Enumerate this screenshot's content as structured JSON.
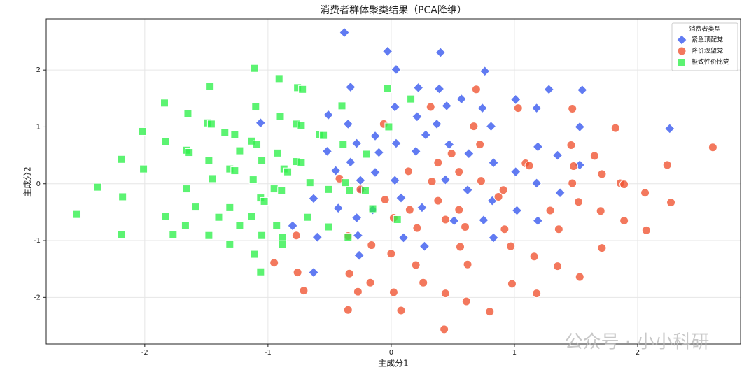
{
  "chart_data": {
    "type": "scatter",
    "title": "消费者群体聚类结果（PCA降维）",
    "xlabel": "主成分1",
    "ylabel": "主成分2",
    "xlim": [
      -2.8,
      2.835
    ],
    "ylim": [
      -2.82,
      2.9
    ],
    "xticks": [
      -2,
      -1,
      0,
      1,
      2
    ],
    "yticks": [
      -2,
      -1,
      0,
      1,
      2
    ],
    "grid": true,
    "legend_title": "消费者类型",
    "legend_position": "upper right",
    "watermark": "公众号 · 小小科研",
    "series": [
      {
        "name": "紧急顶配党",
        "color": "#3556ee",
        "marker": "diamond",
        "x": [
          -0.38,
          -0.03,
          0.4,
          0.04,
          0.76,
          -0.33,
          0.39,
          0.22,
          1.28,
          1.55,
          1.01,
          0.57,
          1.18,
          0.74,
          0.45,
          -0.51,
          -1.06,
          -0.35,
          0.03,
          0.21,
          0.37,
          0.81,
          1.53,
          2.26,
          -0.13,
          0.28,
          0.47,
          -0.28,
          0.04,
          -0.52,
          -0.1,
          0.2,
          0.63,
          0.83,
          1.19,
          1.35,
          1.53,
          1.01,
          -0.45,
          -0.33,
          -0.13,
          0.03,
          1.18,
          0.44,
          0.62,
          -0.25,
          -0.24,
          0.08,
          0.25,
          0.82,
          1.02,
          1.19,
          1.37,
          -0.43,
          -0.28,
          -0.27,
          -0.63,
          -0.8,
          -0.6,
          -0.63,
          -0.26,
          0.1,
          0.27,
          0.51,
          0.75,
          0.83,
          -0.15
        ],
        "values": [
          2.66,
          2.33,
          2.31,
          2.01,
          1.98,
          1.7,
          1.67,
          1.69,
          1.66,
          1.65,
          1.48,
          1.49,
          1.33,
          1.33,
          1.37,
          1.21,
          1.07,
          1.05,
          1.35,
          1.18,
          1.05,
          1.01,
          1.0,
          0.97,
          0.84,
          0.86,
          0.69,
          0.71,
          0.71,
          0.57,
          0.55,
          0.57,
          0.53,
          0.37,
          0.65,
          0.5,
          0.33,
          0.21,
          0.23,
          0.38,
          0.2,
          0.06,
          0.01,
          0.07,
          -0.11,
          0.06,
          -0.11,
          -0.25,
          -0.42,
          -0.3,
          -0.47,
          -0.65,
          -0.16,
          -0.43,
          -0.6,
          -0.91,
          -0.26,
          -0.74,
          -0.94,
          -1.56,
          -1.26,
          -0.95,
          -1.1,
          -0.65,
          -0.64,
          -0.95,
          -0.46
        ]
      },
      {
        "name": "降价观望党",
        "color": "#f0522f",
        "marker": "circle",
        "x": [
          0.69,
          0.32,
          1.03,
          1.47,
          0.67,
          1.82,
          -0.06,
          1.46,
          0.72,
          0.49,
          1.65,
          0.38,
          0.55,
          1.09,
          1.12,
          1.71,
          1.48,
          2.24,
          2.61,
          -0.42,
          0.14,
          0.33,
          0.73,
          0.91,
          1.47,
          1.86,
          1.89,
          2.06,
          -0.25,
          -0.05,
          0.38,
          0.55,
          0.87,
          1.29,
          1.52,
          1.7,
          2.27,
          0.02,
          0.15,
          0.21,
          0.44,
          0.6,
          0.92,
          1.36,
          1.89,
          2.07,
          -0.77,
          -0.35,
          -0.16,
          0.0,
          0.56,
          0.97,
          1.16,
          1.71,
          -0.95,
          -0.76,
          -0.34,
          0.2,
          0.62,
          1.35,
          1.53,
          -0.71,
          -0.27,
          -0.17,
          0.02,
          0.26,
          0.44,
          0.98,
          1.18,
          -0.35,
          0.08,
          0.61,
          0.8,
          0.43
        ],
        "values": [
          1.66,
          1.35,
          1.33,
          1.32,
          1.01,
          0.98,
          1.05,
          0.68,
          0.69,
          0.53,
          0.49,
          0.37,
          0.21,
          0.36,
          0.32,
          0.17,
          0.31,
          0.33,
          0.64,
          0.09,
          0.22,
          0.04,
          0.05,
          -0.11,
          0.01,
          0.01,
          -0.01,
          -0.16,
          -0.1,
          -0.28,
          -0.3,
          -0.46,
          -0.23,
          -0.47,
          -0.32,
          -0.48,
          -0.33,
          -0.6,
          -0.46,
          -0.78,
          -0.63,
          -0.76,
          -0.8,
          -0.8,
          -0.65,
          -0.82,
          -0.91,
          -0.92,
          -1.08,
          -1.23,
          -1.11,
          -1.1,
          -1.28,
          -1.13,
          -1.39,
          -1.56,
          -1.58,
          -1.43,
          -1.42,
          -1.45,
          -1.64,
          -1.88,
          -1.9,
          -1.74,
          -1.91,
          -1.74,
          -1.93,
          -1.76,
          -1.93,
          -2.22,
          -2.23,
          -2.07,
          -2.25,
          -2.56
        ]
      },
      {
        "name": "极致性价比党",
        "color": "#2ef04a",
        "marker": "square",
        "x": [
          -2.55,
          -2.38,
          -2.19,
          -2.18,
          -2.19,
          -2.02,
          -2.01,
          -1.84,
          -1.83,
          -1.83,
          -1.77,
          -1.66,
          -1.65,
          -1.66,
          -1.64,
          -1.67,
          -1.59,
          -1.47,
          -1.49,
          -1.46,
          -1.48,
          -1.48,
          -1.45,
          -1.4,
          -1.35,
          -1.27,
          -1.31,
          -1.27,
          -1.31,
          -1.31,
          -1.23,
          -1.23,
          -1.11,
          -1.13,
          -1.09,
          -1.12,
          -1.05,
          -1.13,
          -1.11,
          -1.06,
          -1.1,
          -1.06,
          -1.03,
          -1.05,
          -0.95,
          -0.88,
          -0.91,
          -0.9,
          -0.92,
          -0.87,
          -0.84,
          -0.89,
          -0.93,
          -0.88,
          -0.77,
          -0.73,
          -0.76,
          -0.72,
          -0.77,
          -0.73,
          -0.68,
          -0.66,
          -0.58,
          -0.55,
          -0.51,
          -0.51,
          -0.4,
          -0.39,
          -0.37,
          -0.34,
          -0.35,
          -0.2,
          -0.21,
          -0.15,
          -0.03,
          -0.02,
          0.05,
          0.16
        ],
        "values": [
          -0.54,
          -0.06,
          0.43,
          -0.23,
          -0.89,
          0.92,
          0.26,
          1.42,
          0.74,
          -0.58,
          -0.9,
          -0.09,
          1.23,
          0.59,
          0.55,
          -0.73,
          -0.41,
          1.71,
          1.07,
          1.05,
          0.41,
          -0.91,
          0.09,
          -0.59,
          0.9,
          0.86,
          0.26,
          0.23,
          -0.42,
          -1.06,
          0.58,
          -0.74,
          2.03,
          0.75,
          0.69,
          0.07,
          0.41,
          -0.58,
          -1.24,
          -1.55,
          1.35,
          -0.25,
          -0.31,
          -0.91,
          -0.09,
          -0.94,
          1.85,
          1.19,
          0.54,
          0.26,
          0.21,
          -0.12,
          -0.73,
          -1.07,
          1.05,
          1.02,
          1.69,
          1.66,
          0.39,
          0.37,
          -0.59,
          0.02,
          0.87,
          0.85,
          -0.1,
          -0.76,
          1.37,
          0.69,
          0.02,
          -0.12,
          -0.94,
          0.52,
          -0.12,
          -0.44,
          1.67,
          1.0,
          -0.63,
          1.49
        ]
      }
    ]
  }
}
